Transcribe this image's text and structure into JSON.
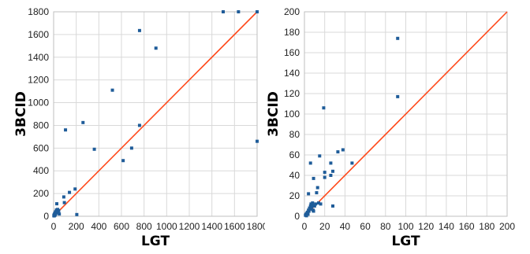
{
  "chart_data": [
    {
      "type": "scatter",
      "xlabel": "LGT",
      "ylabel": "3BCID",
      "xlim": [
        0,
        1800
      ],
      "ylim": [
        0,
        1800
      ],
      "xticks": [
        0,
        200,
        400,
        600,
        800,
        1000,
        1200,
        1400,
        1600,
        1800
      ],
      "yticks": [
        0,
        200,
        400,
        600,
        800,
        1000,
        1200,
        1400,
        1600,
        1800
      ],
      "grid": true,
      "reference_line": {
        "from": [
          0,
          0
        ],
        "to": [
          1800,
          1800
        ],
        "color": "#ff4a1c"
      },
      "point_color": "#1f5c99",
      "points": [
        [
          2,
          5
        ],
        [
          4,
          12
        ],
        [
          5,
          3
        ],
        [
          8,
          20
        ],
        [
          10,
          8
        ],
        [
          12,
          30
        ],
        [
          15,
          15
        ],
        [
          18,
          40
        ],
        [
          20,
          25
        ],
        [
          25,
          55
        ],
        [
          30,
          45
        ],
        [
          35,
          60
        ],
        [
          40,
          35
        ],
        [
          45,
          50
        ],
        [
          28,
          110
        ],
        [
          50,
          20
        ],
        [
          90,
          170
        ],
        [
          95,
          120
        ],
        [
          105,
          760
        ],
        [
          140,
          210
        ],
        [
          190,
          240
        ],
        [
          205,
          15
        ],
        [
          260,
          825
        ],
        [
          360,
          590
        ],
        [
          520,
          1110
        ],
        [
          615,
          490
        ],
        [
          690,
          600
        ],
        [
          760,
          800
        ],
        [
          760,
          1635
        ],
        [
          905,
          1480
        ],
        [
          1500,
          1800
        ],
        [
          1635,
          1800
        ],
        [
          1800,
          1800
        ],
        [
          1800,
          660
        ]
      ]
    },
    {
      "type": "scatter",
      "xlabel": "LGT",
      "ylabel": "3BCID",
      "xlim": [
        0,
        200
      ],
      "ylim": [
        0,
        200
      ],
      "xticks": [
        0,
        20,
        40,
        60,
        80,
        100,
        120,
        140,
        160,
        180,
        200
      ],
      "yticks": [
        0,
        20,
        40,
        60,
        80,
        100,
        120,
        140,
        160,
        180,
        200
      ],
      "grid": true,
      "reference_line": {
        "from": [
          0,
          0
        ],
        "to": [
          200,
          200
        ],
        "color": "#ff4a1c"
      },
      "point_color": "#1f5c99",
      "points": [
        [
          1,
          1
        ],
        [
          1.5,
          2
        ],
        [
          2,
          0.5
        ],
        [
          2.5,
          3
        ],
        [
          3,
          4
        ],
        [
          3.5,
          2
        ],
        [
          4,
          6
        ],
        [
          4.5,
          5
        ],
        [
          5,
          8
        ],
        [
          5.5,
          7
        ],
        [
          6,
          10
        ],
        [
          6.5,
          12
        ],
        [
          7,
          9
        ],
        [
          7.5,
          11
        ],
        [
          8,
          13
        ],
        [
          8.5,
          6
        ],
        [
          9,
          5
        ],
        [
          10,
          10
        ],
        [
          11,
          12
        ],
        [
          12,
          23
        ],
        [
          13,
          28
        ],
        [
          14,
          13
        ],
        [
          16,
          12
        ],
        [
          4,
          22
        ],
        [
          6,
          52
        ],
        [
          9,
          37
        ],
        [
          15,
          59
        ],
        [
          20,
          38
        ],
        [
          20,
          43
        ],
        [
          19,
          106
        ],
        [
          26,
          40
        ],
        [
          26,
          52
        ],
        [
          28,
          44
        ],
        [
          28,
          10
        ],
        [
          33,
          63
        ],
        [
          38,
          65
        ],
        [
          47,
          52
        ],
        [
          92,
          174
        ],
        [
          92,
          117
        ]
      ]
    }
  ]
}
